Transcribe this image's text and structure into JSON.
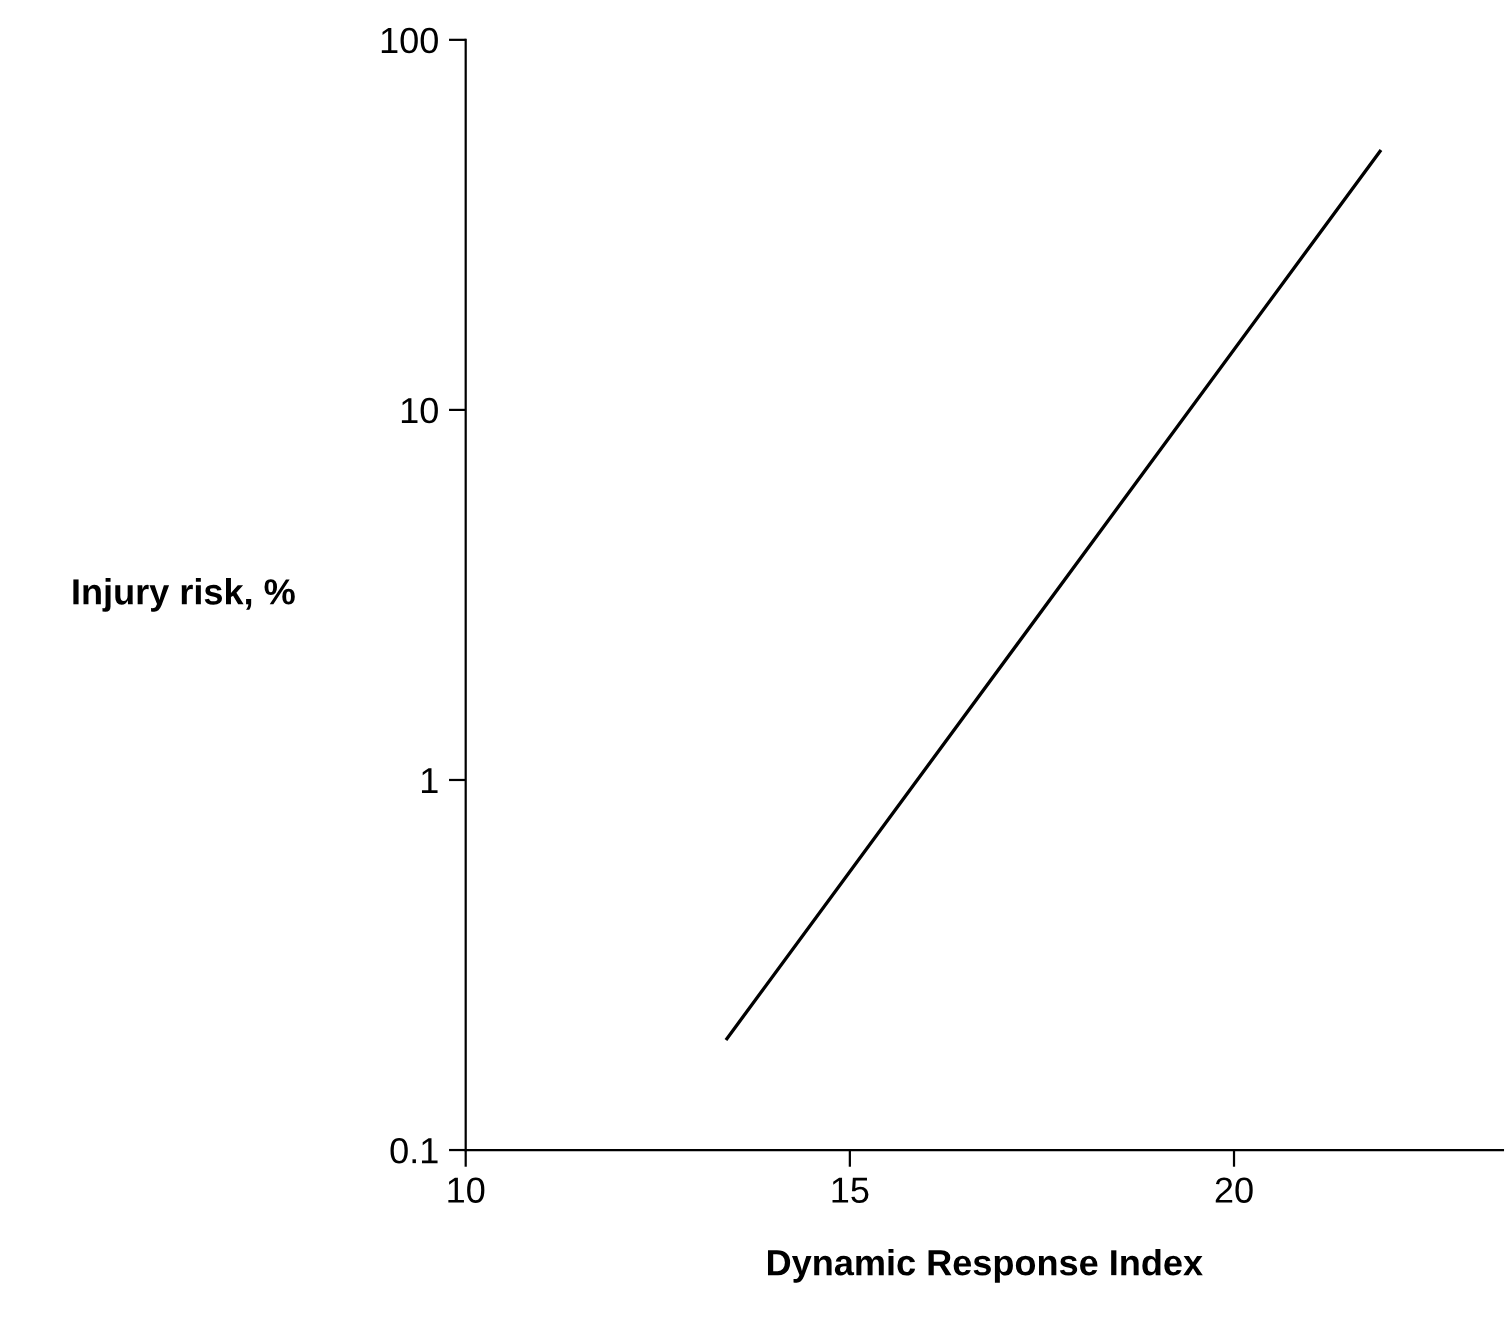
{
  "chart_data": {
    "type": "line",
    "xlabel": "Dynamic Response Index",
    "ylabel": "Injury risk, %",
    "series": [
      {
        "color": "#000000",
        "x": [
          13.4,
          21.9
        ],
        "values": [
          0.2,
          50
        ]
      }
    ],
    "log": "y",
    "xlim": [
      10,
      23.5
    ],
    "xticks": [
      10,
      15,
      20
    ],
    "ylim": [
      0.1,
      100
    ],
    "yticks": [
      0.1,
      1,
      10,
      100
    ],
    "grid": false,
    "legend": false,
    "marker": "none",
    "line_style": "solid"
  }
}
